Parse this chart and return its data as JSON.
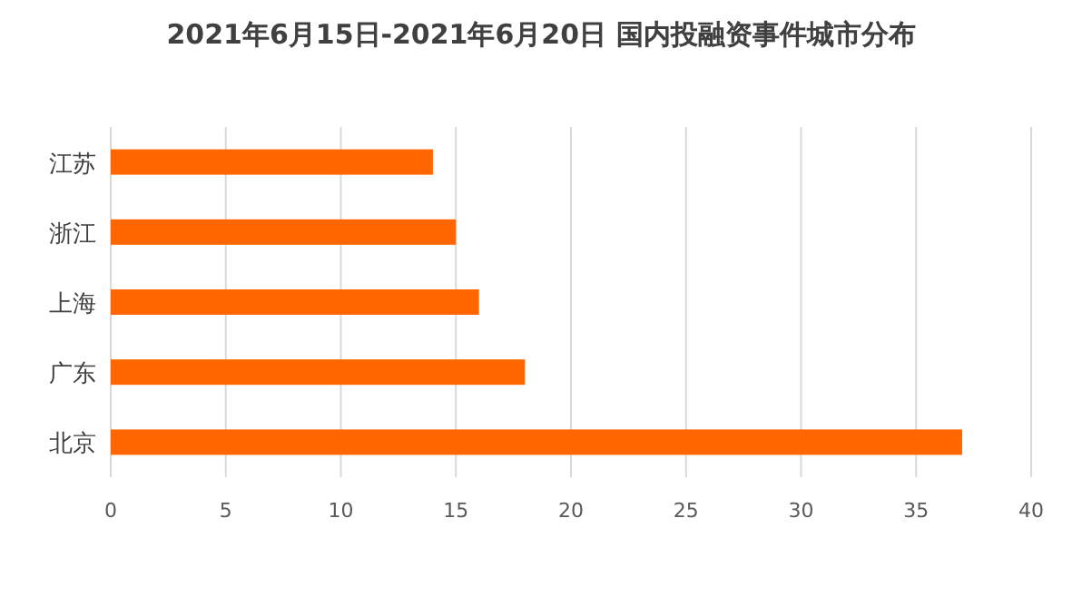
{
  "chart_data": {
    "type": "bar",
    "orientation": "horizontal",
    "title": "2021年6月15日-2021年6月20日 国内投融资事件城市分布",
    "categories": [
      "江苏",
      "浙江",
      "上海",
      "广东",
      "北京"
    ],
    "values": [
      14,
      15,
      16,
      18,
      37
    ],
    "color": "#ff6600",
    "xlim": [
      0,
      40
    ],
    "xticks": [
      0,
      5,
      10,
      15,
      20,
      25,
      30,
      35,
      40
    ],
    "grid": "x"
  }
}
